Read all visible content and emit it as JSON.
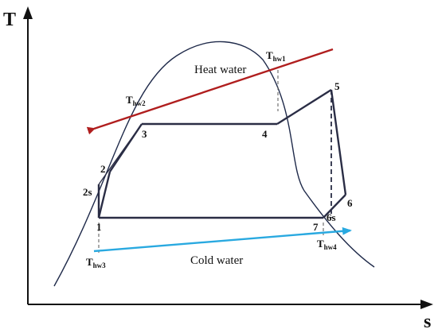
{
  "axes": {
    "x_label": "s",
    "y_label": "T"
  },
  "streams": {
    "heat_water": {
      "label": "Heat water",
      "color": "#b01e1e"
    },
    "cold_water": {
      "label": "Cold water",
      "color": "#29a9e0"
    }
  },
  "states": {
    "p1": "1",
    "p2": "2",
    "p2s": "2s",
    "p3": "3",
    "p4": "4",
    "p5": "5",
    "p6": "6",
    "p6s": "6s",
    "p7": "7"
  },
  "temperatures": {
    "thw1": {
      "main": "T",
      "sub": "hw1"
    },
    "thw2": {
      "main": "T",
      "sub": "hw2"
    },
    "thw3": {
      "main": "T",
      "sub": "hw3"
    },
    "thw4": {
      "main": "T",
      "sub": "hw4"
    }
  },
  "colors": {
    "cycle": "#2a2d45",
    "dome": "#1f2a4a",
    "axis": "#111111"
  }
}
